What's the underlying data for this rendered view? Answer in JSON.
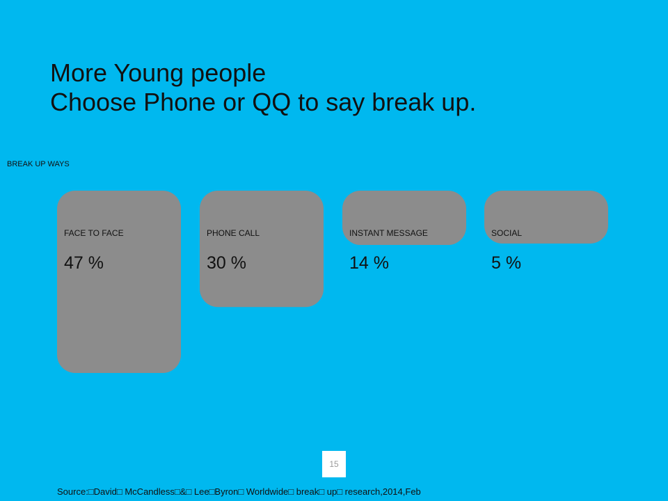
{
  "title": {
    "line1": "More Young people",
    "line2": "Choose Phone or QQ to say break up."
  },
  "section_label": "BREAK UP WAYS",
  "page_number": "15",
  "source": "Source:□David□ McCandless□&□ Lee□Byron□ Worldwide□ break□ up□ research,2014,Feb",
  "colors": {
    "background": "#00b8ef",
    "bar": "#8c8c8c",
    "text": "#111111"
  },
  "chart_data": {
    "type": "bar",
    "categories": [
      "FACE TO FACE",
      "PHONE CALL",
      "INSTANT MESSAGE",
      "SOCIAL"
    ],
    "values": [
      47,
      30,
      14,
      5
    ],
    "value_labels": [
      "47 %",
      "30 %",
      "14 %",
      "5 %"
    ],
    "unit": "%",
    "title": "",
    "xlabel": "",
    "ylabel": ""
  }
}
